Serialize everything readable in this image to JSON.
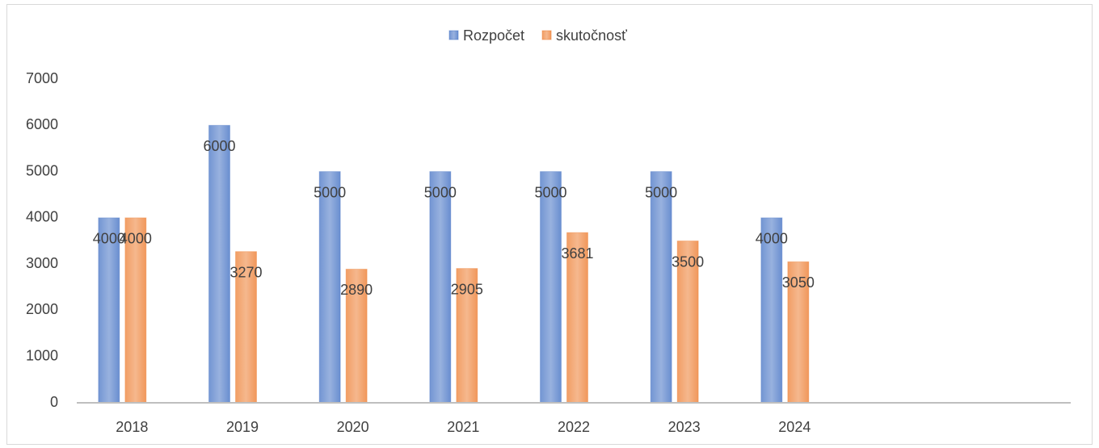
{
  "chart_data": {
    "type": "bar",
    "categories": [
      "2018",
      "2019",
      "2020",
      "2021",
      "2022",
      "2023",
      "2024",
      null,
      null
    ],
    "series": [
      {
        "name": "Rozpočet",
        "color": "#4472c4",
        "values": [
          4000,
          6000,
          5000,
          5000,
          5000,
          5000,
          4000,
          null,
          null
        ]
      },
      {
        "name": "skutočnosť",
        "color": "#ed7d31",
        "values": [
          4000,
          3270,
          2890,
          2905,
          3681,
          3500,
          3050,
          null,
          null
        ]
      }
    ],
    "ylim": [
      0,
      7000
    ],
    "yticks": [
      0,
      1000,
      2000,
      3000,
      4000,
      5000,
      6000,
      7000
    ],
    "grid": false,
    "legend": "top"
  }
}
